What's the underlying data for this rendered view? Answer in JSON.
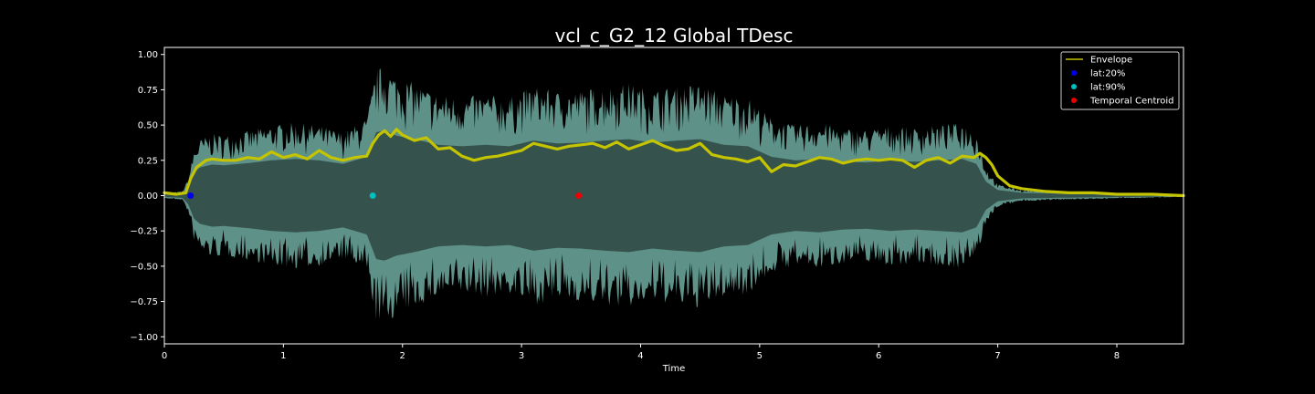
{
  "chart_data": {
    "type": "line",
    "title": "vcl_c_G2_12 Global TDesc",
    "xlabel": "Time",
    "ylabel": "",
    "xlim": [
      0,
      8.56
    ],
    "ylim": [
      -1.05,
      1.05
    ],
    "xticks": [
      0,
      1,
      2,
      3,
      4,
      5,
      6,
      7,
      8
    ],
    "xtick_labels": [
      "0",
      "1",
      "2",
      "3",
      "4",
      "5",
      "6",
      "7",
      "8"
    ],
    "yticks": [
      -1.0,
      -0.75,
      -0.5,
      -0.25,
      0.0,
      0.25,
      0.5,
      0.75,
      1.0
    ],
    "ytick_labels": [
      "−1.00",
      "−0.75",
      "−0.50",
      "−0.25",
      "0.00",
      "0.25",
      "0.50",
      "0.75",
      "1.00"
    ],
    "grid": false,
    "legend_position": "top-right",
    "waveform_peak": {
      "x": [
        0,
        0.15,
        0.2,
        0.25,
        0.3,
        0.4,
        0.5,
        0.7,
        0.9,
        1.1,
        1.3,
        1.5,
        1.7,
        1.78,
        1.85,
        1.95,
        2.1,
        2.3,
        2.5,
        2.7,
        2.9,
        3.1,
        3.3,
        3.5,
        3.7,
        3.9,
        4.1,
        4.3,
        4.5,
        4.7,
        4.9,
        5.1,
        5.3,
        5.5,
        5.7,
        5.9,
        6.1,
        6.3,
        6.5,
        6.7,
        6.82,
        6.9,
        7.0,
        7.2,
        7.5,
        8.0,
        8.56
      ],
      "max": [
        0.02,
        0.03,
        0.12,
        0.33,
        0.4,
        0.44,
        0.43,
        0.46,
        0.5,
        0.52,
        0.5,
        0.45,
        0.55,
        0.9,
        0.92,
        0.85,
        0.8,
        0.72,
        0.7,
        0.72,
        0.7,
        0.78,
        0.74,
        0.75,
        0.78,
        0.8,
        0.75,
        0.78,
        0.8,
        0.72,
        0.7,
        0.55,
        0.5,
        0.52,
        0.48,
        0.47,
        0.5,
        0.48,
        0.5,
        0.52,
        0.45,
        0.2,
        0.08,
        0.04,
        0.03,
        0.02,
        0.01
      ]
    },
    "series": [
      {
        "name": "Envelope",
        "color": "#c4c400",
        "x": [
          0,
          0.1,
          0.18,
          0.22,
          0.27,
          0.35,
          0.4,
          0.5,
          0.6,
          0.7,
          0.8,
          0.9,
          1.0,
          1.1,
          1.2,
          1.3,
          1.4,
          1.5,
          1.6,
          1.7,
          1.75,
          1.8,
          1.85,
          1.9,
          1.95,
          2.0,
          2.1,
          2.2,
          2.3,
          2.4,
          2.5,
          2.6,
          2.7,
          2.8,
          2.9,
          3.0,
          3.1,
          3.2,
          3.3,
          3.4,
          3.5,
          3.6,
          3.7,
          3.8,
          3.9,
          4.0,
          4.1,
          4.2,
          4.3,
          4.4,
          4.5,
          4.6,
          4.7,
          4.8,
          4.9,
          5.0,
          5.1,
          5.2,
          5.3,
          5.4,
          5.5,
          5.6,
          5.7,
          5.8,
          5.9,
          6.0,
          6.1,
          6.2,
          6.3,
          6.4,
          6.5,
          6.6,
          6.7,
          6.8,
          6.85,
          6.9,
          6.95,
          7.0,
          7.1,
          7.2,
          7.4,
          7.6,
          7.8,
          8.0,
          8.3,
          8.56
        ],
        "values": [
          0.02,
          0.01,
          0.02,
          0.12,
          0.2,
          0.25,
          0.26,
          0.25,
          0.25,
          0.27,
          0.26,
          0.31,
          0.27,
          0.29,
          0.26,
          0.32,
          0.27,
          0.25,
          0.27,
          0.28,
          0.37,
          0.43,
          0.46,
          0.42,
          0.47,
          0.43,
          0.39,
          0.41,
          0.33,
          0.34,
          0.28,
          0.25,
          0.27,
          0.28,
          0.3,
          0.32,
          0.37,
          0.35,
          0.33,
          0.35,
          0.36,
          0.37,
          0.34,
          0.38,
          0.33,
          0.36,
          0.39,
          0.35,
          0.32,
          0.33,
          0.37,
          0.29,
          0.27,
          0.26,
          0.24,
          0.27,
          0.17,
          0.22,
          0.21,
          0.24,
          0.27,
          0.26,
          0.23,
          0.25,
          0.26,
          0.25,
          0.26,
          0.25,
          0.2,
          0.25,
          0.27,
          0.23,
          0.28,
          0.27,
          0.3,
          0.27,
          0.22,
          0.14,
          0.07,
          0.05,
          0.03,
          0.02,
          0.02,
          0.01,
          0.01,
          0.0
        ]
      },
      {
        "name": "lat:20%",
        "color": "#0000ee",
        "type": "scatter",
        "x": [
          0.22
        ],
        "values": [
          0.0
        ]
      },
      {
        "name": "lat:90%",
        "color": "#00bfbf",
        "type": "scatter",
        "x": [
          1.75
        ],
        "values": [
          0.0
        ]
      },
      {
        "name": "Temporal Centroid",
        "color": "#ee0000",
        "type": "scatter",
        "x": [
          3.48
        ],
        "values": [
          0.0
        ]
      }
    ]
  }
}
